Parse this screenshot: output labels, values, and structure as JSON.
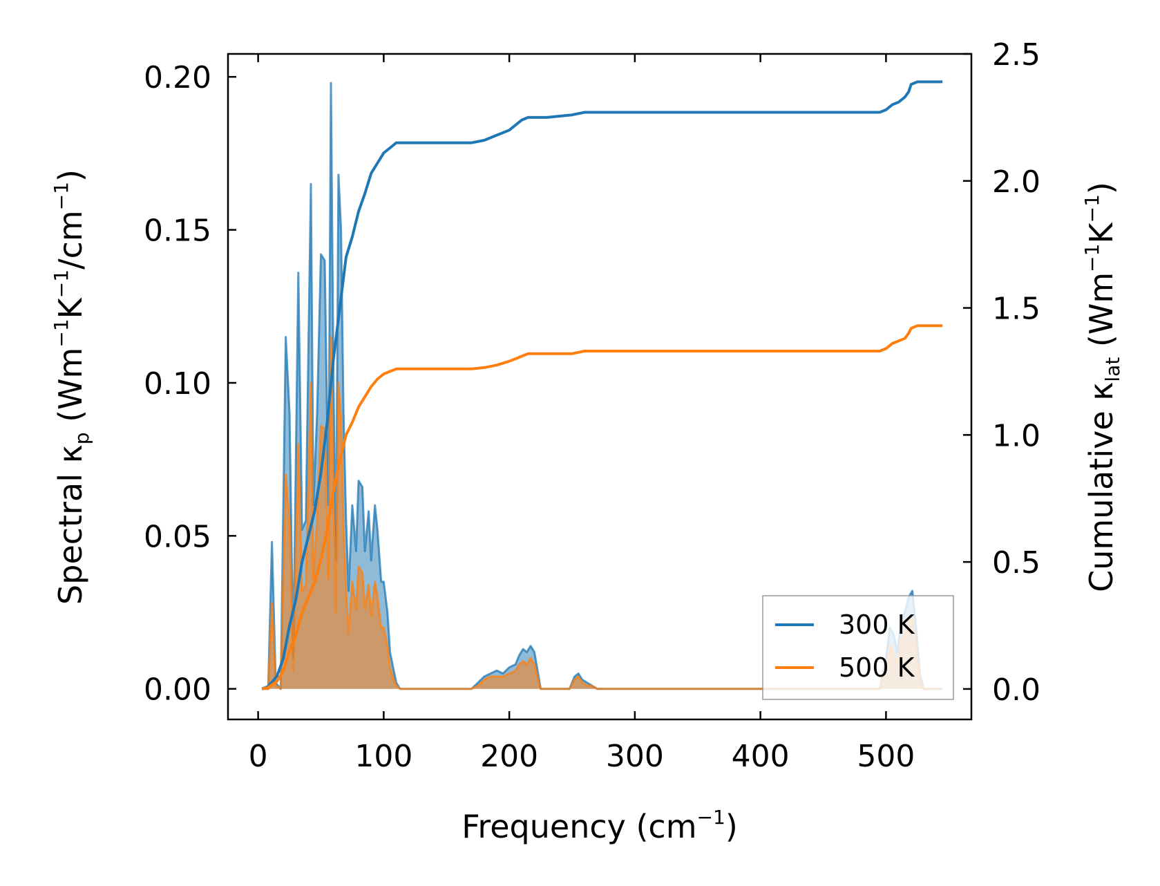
{
  "chart_data": {
    "type": "line",
    "xlabel": "Frequency (cm",
    "xlabel_sup": "−1",
    "xlabel_end": ")",
    "ylabel_left": {
      "part1": "Spectral κ",
      "sub": "p",
      "part2": " (Wm",
      "sup1": "−1",
      "part3": "K",
      "sup2": "−1",
      "part4": "/cm",
      "sup3": "−1",
      "part5": ")"
    },
    "ylabel_right": {
      "part1": "Cumulative κ",
      "sub": "lat",
      "part2": " (Wm",
      "sup1": "−1",
      "part3": "K",
      "sup2": "−1",
      "part4": ")"
    },
    "xlim": [
      -24,
      568
    ],
    "ylim_left": [
      -0.01,
      0.2075
    ],
    "ylim_right": [
      -0.12,
      2.5
    ],
    "x_ticks": [
      0,
      100,
      200,
      300,
      400,
      500
    ],
    "x_tick_labels": [
      "0",
      "100",
      "200",
      "300",
      "400",
      "500"
    ],
    "y_left_ticks": [
      0,
      0.05,
      0.1,
      0.15,
      0.2
    ],
    "y_left_tick_labels": [
      "0.00",
      "0.05",
      "0.10",
      "0.15",
      "0.20"
    ],
    "y_right_ticks": [
      0,
      0.5,
      1.0,
      1.5,
      2.0,
      2.5
    ],
    "y_right_tick_labels": [
      "0.0",
      "0.5",
      "1.0",
      "1.5",
      "2.0",
      "2.5"
    ],
    "legend_position": "lower-right",
    "legend": [
      {
        "label": "300 K",
        "color": "#1f77b4"
      },
      {
        "label": "500 K",
        "color": "#ff7f0e"
      }
    ],
    "series": [
      {
        "name": "300 K",
        "color": "#1f77b4",
        "spectral": {
          "x": [
            3,
            8,
            11,
            14,
            18,
            22,
            25,
            28,
            32,
            35,
            38,
            42,
            44,
            47,
            50,
            53,
            56,
            58,
            60,
            62,
            64,
            66,
            68,
            70,
            72,
            75,
            78,
            80,
            83,
            85,
            88,
            90,
            93,
            95,
            98,
            100,
            103,
            105,
            108,
            110,
            113,
            116,
            120,
            170,
            175,
            180,
            185,
            190,
            195,
            200,
            205,
            208,
            211,
            214,
            217,
            220,
            225,
            230,
            248,
            252,
            255,
            258,
            262,
            266,
            270,
            275,
            280,
            300,
            400,
            495,
            500,
            503,
            506,
            509,
            512,
            515,
            518,
            521,
            524,
            527,
            530,
            545
          ],
          "y": [
            0,
            0,
            0.048,
            0.002,
            0,
            0.115,
            0.09,
            0.01,
            0.136,
            0.052,
            0.055,
            0.165,
            0.06,
            0.09,
            0.142,
            0.14,
            0.06,
            0.198,
            0.1,
            0.042,
            0.168,
            0.15,
            0.09,
            0.055,
            0.032,
            0.06,
            0.045,
            0.068,
            0.066,
            0.045,
            0.058,
            0.042,
            0.06,
            0.052,
            0.035,
            0.035,
            0.025,
            0.012,
            0.006,
            0.002,
            0,
            0,
            0,
            0,
            0.002,
            0.004,
            0.005,
            0.006,
            0.005,
            0.007,
            0.008,
            0.011,
            0.013,
            0.012,
            0.014,
            0.012,
            0,
            0,
            0,
            0.004,
            0.005,
            0.003,
            0.002,
            0.001,
            0,
            0,
            0,
            0,
            0,
            0,
            0.01,
            0.02,
            0.018,
            0.012,
            0.022,
            0.025,
            0.03,
            0.032,
            0.02,
            0.005,
            0,
            0
          ]
        },
        "cumulative": {
          "x": [
            3,
            8,
            15,
            20,
            25,
            30,
            35,
            40,
            45,
            50,
            55,
            60,
            65,
            70,
            75,
            80,
            85,
            90,
            95,
            100,
            105,
            110,
            115,
            120,
            170,
            180,
            190,
            200,
            205,
            210,
            215,
            220,
            230,
            250,
            260,
            270,
            300,
            400,
            495,
            500,
            505,
            510,
            515,
            518,
            520,
            525,
            545
          ],
          "y": [
            0,
            0.01,
            0.05,
            0.12,
            0.25,
            0.35,
            0.5,
            0.6,
            0.7,
            0.85,
            1.05,
            1.3,
            1.5,
            1.7,
            1.78,
            1.88,
            1.95,
            2.03,
            2.07,
            2.11,
            2.13,
            2.15,
            2.15,
            2.15,
            2.15,
            2.16,
            2.18,
            2.2,
            2.22,
            2.24,
            2.25,
            2.25,
            2.25,
            2.26,
            2.27,
            2.27,
            2.27,
            2.27,
            2.27,
            2.28,
            2.3,
            2.31,
            2.33,
            2.35,
            2.38,
            2.39,
            2.39
          ]
        }
      },
      {
        "name": "500 K",
        "color": "#ff7f0e",
        "spectral": {
          "x": [
            3,
            8,
            11,
            14,
            18,
            22,
            25,
            28,
            32,
            35,
            38,
            42,
            44,
            47,
            50,
            53,
            56,
            58,
            60,
            62,
            64,
            66,
            68,
            70,
            72,
            75,
            78,
            80,
            83,
            85,
            88,
            90,
            93,
            95,
            98,
            100,
            103,
            105,
            108,
            110,
            113,
            116,
            120,
            170,
            175,
            180,
            185,
            190,
            195,
            200,
            205,
            208,
            211,
            214,
            217,
            220,
            225,
            230,
            248,
            252,
            255,
            258,
            262,
            266,
            270,
            275,
            280,
            300,
            400,
            495,
            500,
            503,
            506,
            509,
            512,
            515,
            518,
            521,
            524,
            527,
            530,
            545
          ],
          "y": [
            0,
            0,
            0.028,
            0.001,
            0,
            0.07,
            0.055,
            0.006,
            0.08,
            0.032,
            0.034,
            0.1,
            0.036,
            0.055,
            0.086,
            0.085,
            0.036,
            0.115,
            0.06,
            0.025,
            0.1,
            0.088,
            0.052,
            0.032,
            0.018,
            0.035,
            0.026,
            0.04,
            0.038,
            0.026,
            0.034,
            0.024,
            0.035,
            0.03,
            0.02,
            0.02,
            0.014,
            0.007,
            0.003,
            0.001,
            0,
            0,
            0,
            0,
            0.001,
            0.003,
            0.004,
            0.004,
            0.004,
            0.005,
            0.006,
            0.008,
            0.009,
            0.008,
            0.01,
            0.008,
            0,
            0,
            0,
            0.003,
            0.004,
            0.002,
            0.001,
            0.001,
            0,
            0,
            0,
            0,
            0,
            0,
            0.007,
            0.014,
            0.012,
            0.008,
            0.016,
            0.018,
            0.022,
            0.023,
            0.014,
            0.003,
            0,
            0
          ]
        },
        "cumulative": {
          "x": [
            3,
            8,
            15,
            20,
            25,
            30,
            35,
            40,
            45,
            50,
            55,
            60,
            65,
            70,
            75,
            80,
            85,
            90,
            95,
            100,
            105,
            110,
            115,
            120,
            170,
            180,
            190,
            200,
            205,
            210,
            215,
            220,
            230,
            250,
            260,
            270,
            300,
            400,
            495,
            500,
            505,
            510,
            515,
            518,
            520,
            525,
            545
          ],
          "y": [
            0,
            0.006,
            0.03,
            0.07,
            0.15,
            0.21,
            0.3,
            0.36,
            0.42,
            0.51,
            0.63,
            0.78,
            0.9,
            1.0,
            1.05,
            1.11,
            1.15,
            1.19,
            1.22,
            1.24,
            1.25,
            1.26,
            1.26,
            1.26,
            1.26,
            1.265,
            1.275,
            1.29,
            1.3,
            1.31,
            1.32,
            1.32,
            1.32,
            1.32,
            1.33,
            1.33,
            1.33,
            1.33,
            1.33,
            1.34,
            1.36,
            1.37,
            1.38,
            1.4,
            1.42,
            1.43,
            1.43
          ]
        }
      }
    ]
  }
}
